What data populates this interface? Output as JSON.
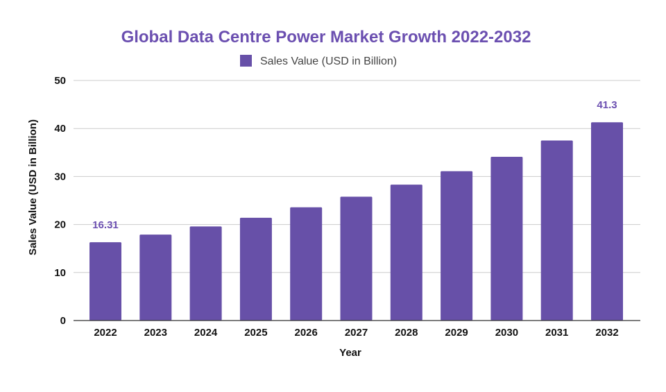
{
  "chart_data": {
    "type": "bar",
    "title": "Global Data Centre Power Market Growth 2022-2032",
    "xlabel": "Year",
    "ylabel": "Sales Value (USD in Billion)",
    "ylim": [
      0,
      50
    ],
    "yticks": [
      "0",
      "10",
      "20",
      "30",
      "40",
      "50"
    ],
    "grid": true,
    "legend_position": "top-center",
    "categories": [
      "2022",
      "2023",
      "2024",
      "2025",
      "2026",
      "2027",
      "2028",
      "2029",
      "2030",
      "2031",
      "2032"
    ],
    "series": [
      {
        "name": "Sales Value (USD in Billion)",
        "color": "#6750a8",
        "values": [
          16.31,
          17.9,
          19.6,
          21.4,
          23.6,
          25.8,
          28.3,
          31.1,
          34.1,
          37.5,
          41.3
        ]
      }
    ],
    "data_labels": [
      {
        "category": "2022",
        "text": "16.31"
      },
      {
        "category": "2032",
        "text": "41.3"
      }
    ]
  },
  "colors": {
    "title": "#6b4fb0",
    "bar": "#6750a8",
    "label": "#6b4fb0",
    "grid": "#cccccc",
    "axis": "#333333"
  }
}
